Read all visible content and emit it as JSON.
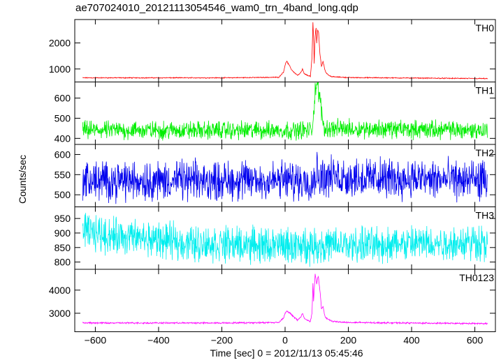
{
  "chart_data": {
    "type": "line",
    "title": "ae707024010_20121113054546_wam0_trn_4band_long.qdp",
    "xlabel": "Time [sec] 0 = 2012/11/13 05:45:46",
    "ylabel": "Counts/sec",
    "xlim": [
      -665,
      665
    ],
    "x_ticks": [
      -600,
      -400,
      -200,
      0,
      200,
      400,
      600
    ],
    "x_tick_labels": [
      "−600",
      "−400",
      "−200",
      "0",
      "200",
      "400",
      "600"
    ],
    "grid": false,
    "panels": [
      {
        "name": "TH0",
        "color": "#ff0000",
        "ylim": [
          500,
          2900
        ],
        "y_ticks": [
          1000,
          2000
        ],
        "baseline": 660,
        "noise": 22,
        "series": {
          "x": [
            -640,
            -200,
            -20,
            -5,
            0,
            5,
            10,
            15,
            20,
            30,
            40,
            50,
            55,
            60,
            70,
            80,
            85,
            88,
            90,
            92,
            95,
            98,
            100,
            103,
            106,
            110,
            115,
            120,
            125,
            130,
            140,
            150,
            200,
            640
          ],
          "y": [
            660,
            660,
            680,
            880,
            1150,
            1300,
            1200,
            1100,
            980,
            850,
            760,
            860,
            1000,
            820,
            760,
            720,
            1400,
            2800,
            2200,
            1200,
            2300,
            2600,
            2000,
            2500,
            2400,
            1600,
            1100,
            1300,
            1000,
            850,
            740,
            700,
            670,
            630
          ]
        }
      },
      {
        "name": "TH1",
        "color": "#00ee00",
        "ylim": [
          370,
          680
        ],
        "y_ticks": [
          400,
          500,
          600
        ],
        "baseline": 440,
        "noise": 55,
        "series": {
          "x": [
            -640,
            85,
            90,
            95,
            100,
            105,
            110,
            118,
            125,
            640
          ],
          "y": [
            440,
            440,
            520,
            640,
            670,
            640,
            600,
            500,
            450,
            440
          ]
        }
      },
      {
        "name": "TH2",
        "color": "#0000ee",
        "ylim": [
          470,
          625
        ],
        "y_ticks": [
          500,
          550,
          600
        ],
        "baseline": 535,
        "noise": 60,
        "series": {
          "x": [
            -640,
            90,
            100,
            110,
            640
          ],
          "y": [
            535,
            535,
            560,
            545,
            535
          ]
        }
      },
      {
        "name": "TH3",
        "color": "#00eeee",
        "ylim": [
          775,
          990
        ],
        "y_ticks": [
          800,
          850,
          900,
          950
        ],
        "baseline": 870,
        "noise": 75,
        "series": {
          "x": [
            -640,
            -500,
            -300,
            0,
            300,
            640
          ],
          "y": [
            905,
            885,
            865,
            855,
            860,
            870
          ]
        }
      },
      {
        "name": "TH0123",
        "color": "#ff00ff",
        "ylim": [
          2200,
          4900
        ],
        "y_ticks": [
          3000,
          4000
        ],
        "baseline": 2580,
        "noise": 40,
        "series": {
          "x": [
            -640,
            -200,
            -20,
            -5,
            0,
            5,
            10,
            20,
            30,
            40,
            50,
            55,
            60,
            70,
            80,
            85,
            88,
            90,
            95,
            100,
            105,
            110,
            115,
            120,
            125,
            130,
            140,
            150,
            200,
            640
          ],
          "y": [
            2580,
            2580,
            2600,
            2800,
            3000,
            3100,
            3050,
            2950,
            2800,
            2700,
            2850,
            3000,
            2800,
            2700,
            2650,
            3000,
            4300,
            3500,
            4700,
            4300,
            4600,
            4000,
            3200,
            3300,
            2900,
            2800,
            2700,
            2650,
            2600,
            2550
          ]
        }
      }
    ]
  }
}
